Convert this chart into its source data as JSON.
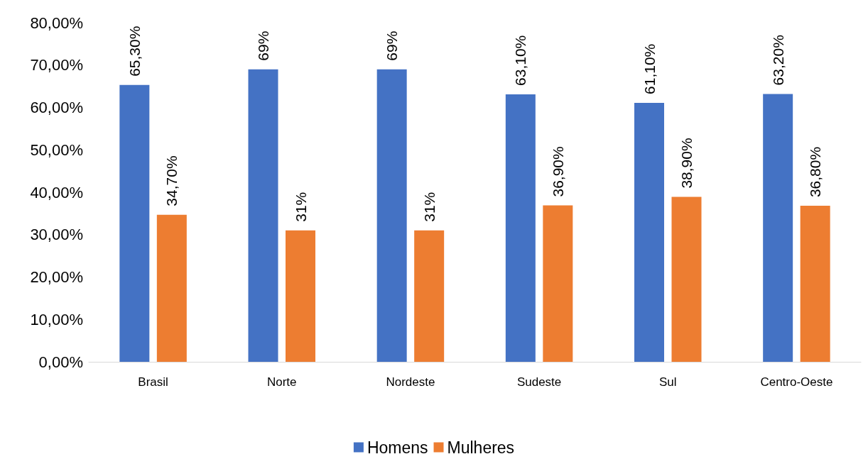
{
  "chart_data": {
    "type": "bar",
    "categories": [
      "Brasil",
      "Norte",
      "Nordeste",
      "Sudeste",
      "Sul",
      "Centro-Oeste"
    ],
    "series": [
      {
        "name": "Homens",
        "color": "#4472c4",
        "values": [
          65.3,
          69,
          69,
          63.1,
          61.1,
          63.2
        ],
        "value_labels": [
          "65,30%",
          "69%",
          "69%",
          "63,10%",
          "61,10%",
          "63,20%"
        ]
      },
      {
        "name": "Mulheres",
        "color": "#ed7d31",
        "values": [
          34.7,
          31,
          31,
          36.9,
          38.9,
          36.8
        ],
        "value_labels": [
          "34,70%",
          "31%",
          "31%",
          "36,90%",
          "38,90%",
          "36,80%"
        ]
      }
    ],
    "ylim": [
      0,
      80
    ],
    "yticks": [
      {
        "value": 0,
        "label": "0,00%"
      },
      {
        "value": 10,
        "label": "10,00%"
      },
      {
        "value": 20,
        "label": "20,00%"
      },
      {
        "value": 30,
        "label": "30,00%"
      },
      {
        "value": 40,
        "label": "40,00%"
      },
      {
        "value": 50,
        "label": "50,00%"
      },
      {
        "value": 60,
        "label": "60,00%"
      },
      {
        "value": 70,
        "label": "70,00%"
      },
      {
        "value": 80,
        "label": "80,00%"
      }
    ],
    "legend": "bottom"
  }
}
